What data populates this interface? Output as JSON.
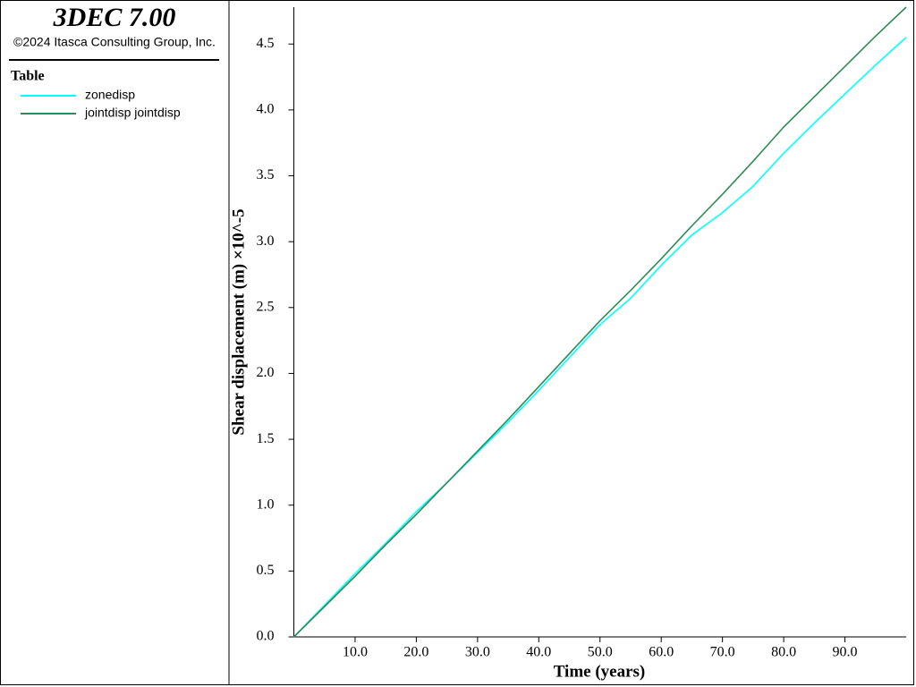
{
  "chart_data": {
    "type": "line",
    "title": "3DEC 7.00",
    "subtitle": "©2024 Itasca Consulting Group, Inc.",
    "legend_title": "Table",
    "x_label": "Time (years)",
    "y_label": "Shear displacement (m) ×10^-5",
    "x": [
      0,
      5,
      10,
      15,
      20,
      25,
      30,
      35,
      40,
      45,
      50,
      55,
      60,
      65,
      70,
      75,
      80,
      85,
      90,
      95,
      100
    ],
    "series": [
      {
        "name": "zonedisp",
        "color": "#00ffff",
        "values": [
          0,
          0.24,
          0.48,
          0.71,
          0.95,
          1.17,
          1.4,
          1.63,
          1.87,
          2.12,
          2.37,
          2.57,
          2.82,
          3.05,
          3.22,
          3.42,
          3.67,
          3.9,
          4.12,
          4.34,
          4.55
        ]
      },
      {
        "name": "jointdisp jointdisp",
        "color": "#2e8b57",
        "values": [
          0,
          0.23,
          0.46,
          0.7,
          0.93,
          1.17,
          1.41,
          1.65,
          1.9,
          2.15,
          2.4,
          2.63,
          2.87,
          3.12,
          3.36,
          3.61,
          3.87,
          4.1,
          4.33,
          4.56,
          4.78
        ]
      }
    ],
    "xlim": [
      0,
      100
    ],
    "ylim": [
      0,
      4.78
    ],
    "xticks": [
      {
        "value": 10,
        "label": "10.0"
      },
      {
        "value": 20,
        "label": "20.0"
      },
      {
        "value": 30,
        "label": "30.0"
      },
      {
        "value": 40,
        "label": "40.0"
      },
      {
        "value": 50,
        "label": "50.0"
      },
      {
        "value": 60,
        "label": "60.0"
      },
      {
        "value": 70,
        "label": "70.0"
      },
      {
        "value": 80,
        "label": "80.0"
      },
      {
        "value": 90,
        "label": "90.0"
      }
    ],
    "yticks": [
      {
        "value": 0,
        "label": "0.0"
      },
      {
        "value": 0.5,
        "label": "0.5"
      },
      {
        "value": 1,
        "label": "1.0"
      },
      {
        "value": 1.5,
        "label": "1.5"
      },
      {
        "value": 2,
        "label": "2.0"
      },
      {
        "value": 2.5,
        "label": "2.5"
      },
      {
        "value": 3,
        "label": "3.0"
      },
      {
        "value": 3.5,
        "label": "3.5"
      },
      {
        "value": 4,
        "label": "4.0"
      },
      {
        "value": 4.5,
        "label": "4.5"
      }
    ]
  }
}
